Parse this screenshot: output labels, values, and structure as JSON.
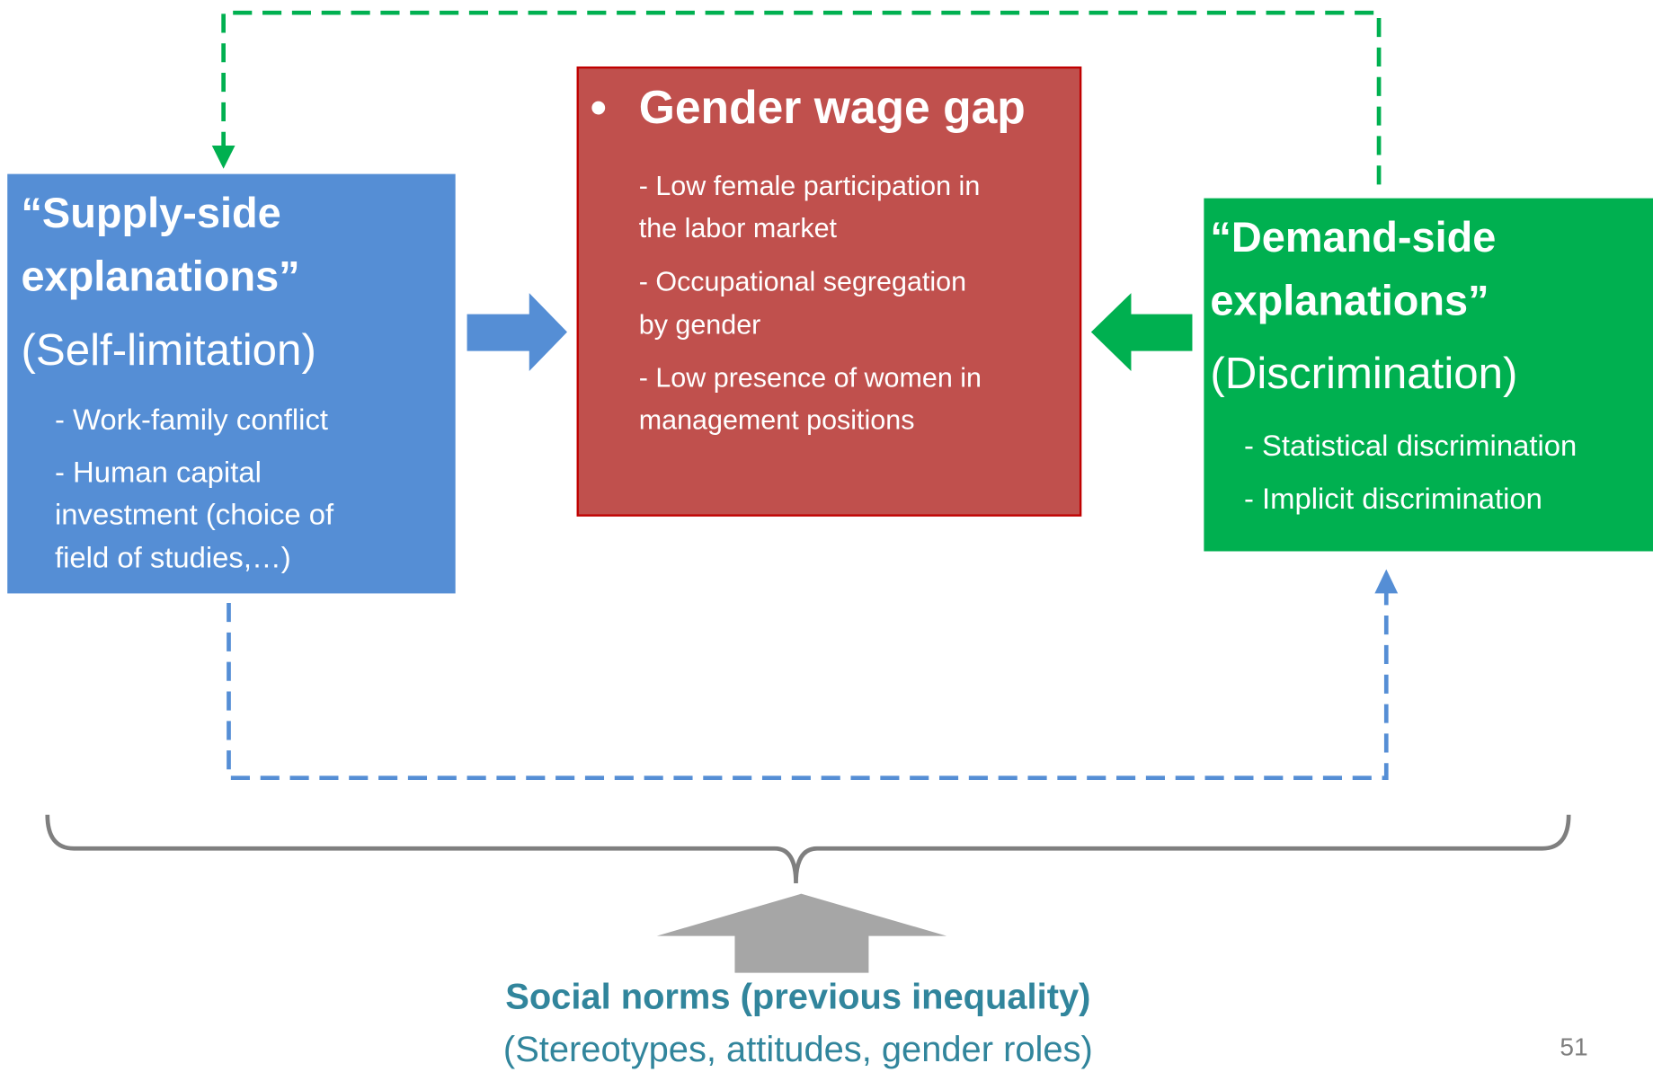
{
  "supply": {
    "title": [
      "“Supply-side",
      "explanations”"
    ],
    "subtitle": "(Self-limitation)",
    "items": [
      [
        "- Work-family conflict"
      ],
      [
        "- Human capital",
        "investment (choice of",
        "field of studies,…)"
      ]
    ]
  },
  "center": {
    "bullet": "•",
    "title": "Gender wage gap",
    "items": [
      [
        "- Low female participation in",
        "the labor market"
      ],
      [
        "- Occupational segregation",
        "by gender"
      ],
      [
        "- Low presence of women in",
        "management positions"
      ]
    ]
  },
  "demand": {
    "title": [
      "“Demand-side",
      "explanations”"
    ],
    "subtitle": "(Discrimination)",
    "items": [
      [
        "- Statistical discrimination"
      ],
      [
        "- Implicit discrimination"
      ]
    ]
  },
  "norms": {
    "title": "Social norms (previous inequality)",
    "subtitle": "(Stereotypes, attitudes, gender roles)"
  },
  "page_number": "51"
}
